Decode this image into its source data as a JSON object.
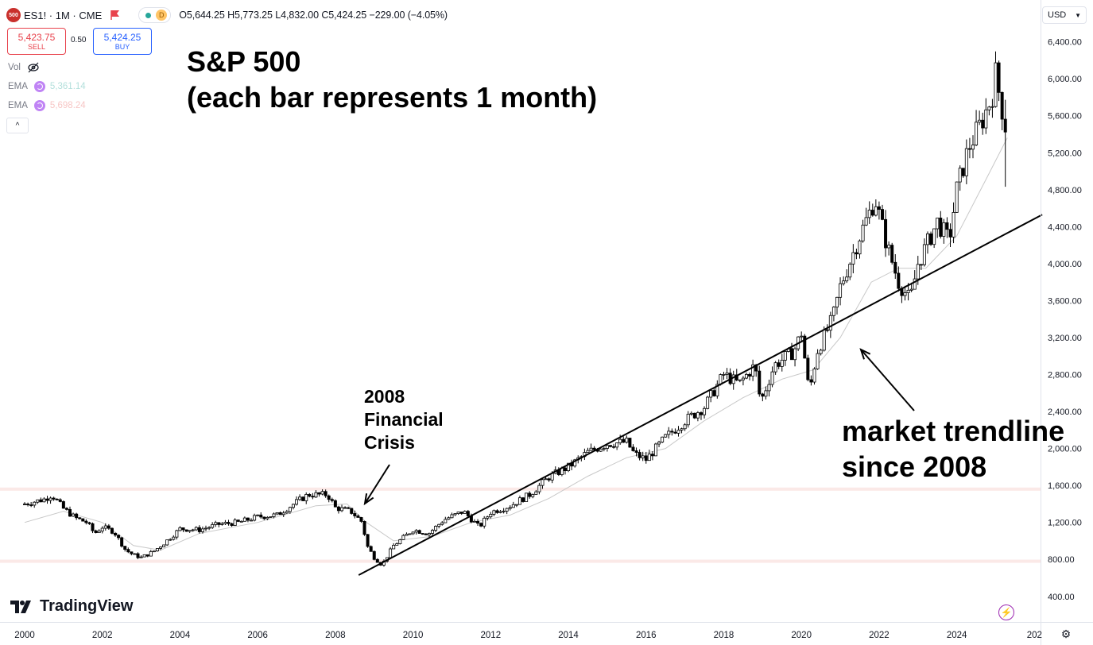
{
  "header": {
    "logo_text": "500",
    "symbol": "ES1! · 1M · CME",
    "pill_letter": "D",
    "ohlc": "O5,644.25 H5,773.25 L4,832.00 C5,424.25 −229.00 (−4.05%)"
  },
  "trade": {
    "sell_price": "5,423.75",
    "sell_label": "SELL",
    "spread": "0.50",
    "buy_price": "5,424.25",
    "buy_label": "BUY"
  },
  "indicators": [
    {
      "name": "Vol",
      "value": ""
    },
    {
      "name": "EMA",
      "value": "5,361.14",
      "color": "#26a69a"
    },
    {
      "name": "EMA",
      "value": "5,698.24",
      "color": "#ef5350"
    }
  ],
  "collapse_glyph": "^",
  "currency": "USD",
  "brand": "TradingView",
  "icons": {
    "flag": "flag-icon",
    "hide": "eye-off-icon",
    "bolt": "lightning-icon",
    "gear": "gear-icon"
  },
  "colors": {
    "candle": "#000000",
    "ema_line": "#c8c8c8",
    "band": "#fbe9e7",
    "trendline": "#000000"
  },
  "annotations": {
    "title": "S&P 500\n(each bar represents 1 month)",
    "crisis": "2008\nFinancial\nCrisis",
    "trend": "market trendline\nsince 2008"
  },
  "chart_data": {
    "type": "candlestick",
    "interval": "1 month",
    "ylim": [
      160,
      6650
    ],
    "xlim": [
      2000.0,
      2025.5
    ],
    "y_ticks": [
      "400.00",
      "800.00",
      "1,200.00",
      "1,600.00",
      "2,000.00",
      "2,400.00",
      "2,800.00",
      "3,200.00",
      "3,600.00",
      "4,000.00",
      "4,400.00",
      "4,800.00",
      "5,200.00",
      "5,600.00",
      "6,000.00",
      "6,400.00"
    ],
    "x_ticks": [
      "2000",
      "2002",
      "2004",
      "2006",
      "2008",
      "2010",
      "2012",
      "2014",
      "2016",
      "2018",
      "2020",
      "2022",
      "2024",
      "202"
    ],
    "horizontal_levels": [
      1560,
      780
    ],
    "trendline": {
      "from": {
        "x": 2008.6,
        "y": 630
      },
      "to": {
        "x": 2026.2,
        "y": 4530
      }
    },
    "close_path": [
      [
        2000.0,
        1400
      ],
      [
        2000.5,
        1450
      ],
      [
        2000.7,
        1500
      ],
      [
        2001.0,
        1350
      ],
      [
        2001.3,
        1250
      ],
      [
        2001.6,
        1200
      ],
      [
        2001.8,
        1080
      ],
      [
        2002.0,
        1150
      ],
      [
        2002.3,
        1100
      ],
      [
        2002.6,
        900
      ],
      [
        2002.8,
        850
      ],
      [
        2003.0,
        820
      ],
      [
        2003.3,
        880
      ],
      [
        2003.6,
        980
      ],
      [
        2004.0,
        1130
      ],
      [
        2004.5,
        1120
      ],
      [
        2005.0,
        1180
      ],
      [
        2005.5,
        1200
      ],
      [
        2006.0,
        1260
      ],
      [
        2006.5,
        1280
      ],
      [
        2007.0,
        1420
      ],
      [
        2007.3,
        1500
      ],
      [
        2007.8,
        1500
      ],
      [
        2008.0,
        1360
      ],
      [
        2008.4,
        1320
      ],
      [
        2008.7,
        1200
      ],
      [
        2008.8,
        960
      ],
      [
        2009.0,
        820
      ],
      [
        2009.2,
        740
      ],
      [
        2009.5,
        950
      ],
      [
        2010.0,
        1120
      ],
      [
        2010.4,
        1080
      ],
      [
        2010.8,
        1230
      ],
      [
        2011.3,
        1320
      ],
      [
        2011.7,
        1150
      ],
      [
        2012.0,
        1310
      ],
      [
        2012.5,
        1380
      ],
      [
        2013.0,
        1500
      ],
      [
        2013.5,
        1690
      ],
      [
        2014.0,
        1800
      ],
      [
        2014.5,
        1960
      ],
      [
        2015.0,
        2050
      ],
      [
        2015.5,
        2070
      ],
      [
        2015.7,
        1940
      ],
      [
        2016.0,
        1880
      ],
      [
        2016.5,
        2120
      ],
      [
        2017.0,
        2300
      ],
      [
        2017.5,
        2450
      ],
      [
        2018.0,
        2800
      ],
      [
        2018.4,
        2700
      ],
      [
        2018.8,
        2900
      ],
      [
        2018.95,
        2500
      ],
      [
        2019.3,
        2900
      ],
      [
        2019.8,
        3050
      ],
      [
        2020.0,
        3250
      ],
      [
        2020.2,
        2600
      ],
      [
        2020.4,
        3050
      ],
      [
        2020.8,
        3400
      ],
      [
        2021.0,
        3750
      ],
      [
        2021.5,
        4300
      ],
      [
        2021.9,
        4700
      ],
      [
        2022.2,
        4200
      ],
      [
        2022.5,
        3800
      ],
      [
        2022.8,
        3600
      ],
      [
        2023.0,
        4000
      ],
      [
        2023.5,
        4450
      ],
      [
        2023.8,
        4250
      ],
      [
        2024.0,
        4800
      ],
      [
        2024.3,
        5250
      ],
      [
        2024.6,
        5500
      ],
      [
        2024.9,
        5800
      ],
      [
        2025.0,
        6050
      ],
      [
        2025.2,
        5600
      ],
      [
        2025.3,
        5424
      ]
    ],
    "ema_path": [
      [
        2000.0,
        1200
      ],
      [
        2001.0,
        1320
      ],
      [
        2002.0,
        1200
      ],
      [
        2002.8,
        950
      ],
      [
        2003.5,
        900
      ],
      [
        2004.5,
        1080
      ],
      [
        2006.0,
        1200
      ],
      [
        2007.5,
        1380
      ],
      [
        2008.3,
        1400
      ],
      [
        2008.8,
        1200
      ],
      [
        2009.5,
        1000
      ],
      [
        2010.5,
        1050
      ],
      [
        2011.5,
        1200
      ],
      [
        2012.5,
        1280
      ],
      [
        2013.5,
        1460
      ],
      [
        2014.5,
        1700
      ],
      [
        2015.5,
        1900
      ],
      [
        2016.5,
        2000
      ],
      [
        2017.5,
        2300
      ],
      [
        2018.5,
        2550
      ],
      [
        2019.5,
        2750
      ],
      [
        2020.3,
        2850
      ],
      [
        2021.0,
        3200
      ],
      [
        2021.8,
        3800
      ],
      [
        2022.5,
        3950
      ],
      [
        2023.2,
        3950
      ],
      [
        2024.0,
        4300
      ],
      [
        2024.8,
        4950
      ],
      [
        2025.3,
        5361
      ]
    ]
  }
}
